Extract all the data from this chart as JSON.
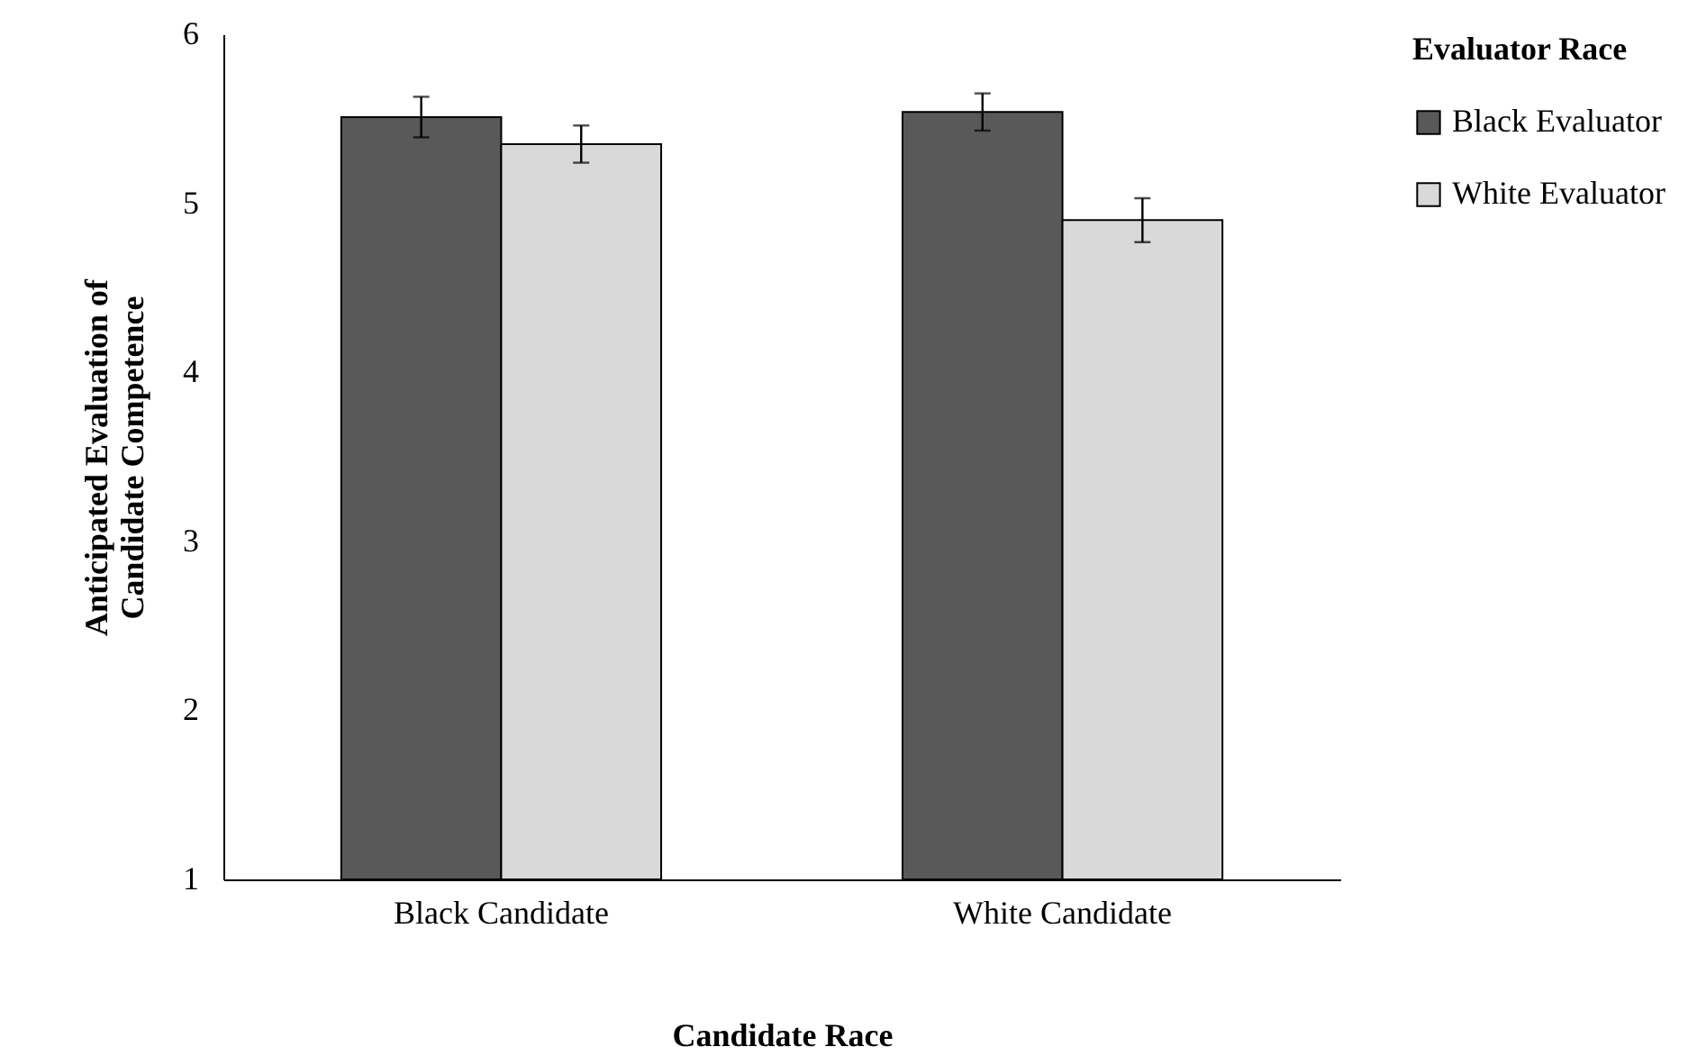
{
  "chart_data": {
    "type": "bar",
    "xlabel": "Candidate Race",
    "ylabel": "Anticipated Evaluation of Candidate Competence",
    "legend_title": "Evaluator Race",
    "categories": [
      "Black Candidate",
      "White Candidate"
    ],
    "series": [
      {
        "name": "Black Evaluator",
        "color": "#595959",
        "values": [
          5.51,
          5.54
        ],
        "errors": [
          0.12,
          0.11
        ]
      },
      {
        "name": "White Evaluator",
        "color": "#d9d9d9",
        "values": [
          5.35,
          4.9
        ],
        "errors": [
          0.11,
          0.13
        ]
      }
    ],
    "ylim": [
      1,
      6
    ],
    "yticks": [
      1,
      2,
      3,
      4,
      5,
      6
    ],
    "grid": false,
    "legend": "right"
  }
}
